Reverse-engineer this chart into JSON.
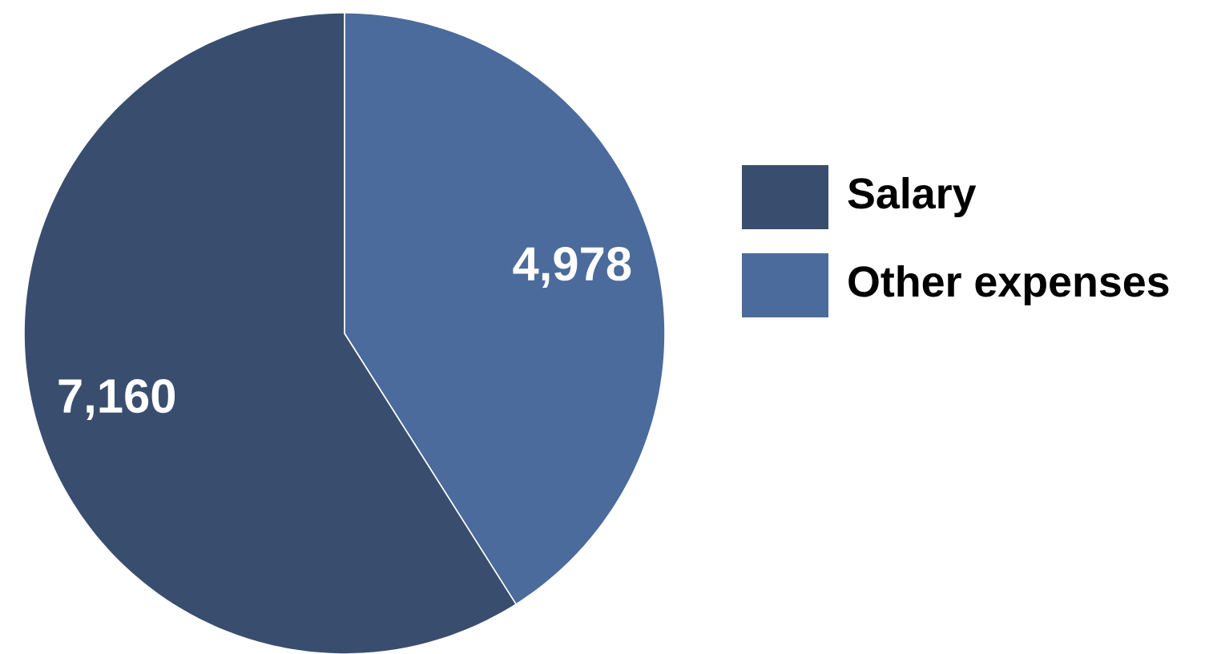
{
  "chart_data": {
    "type": "pie",
    "categories": [
      "Salary",
      "Other expenses"
    ],
    "values": [
      7160,
      4978
    ],
    "value_labels": [
      "7,160",
      "4,978"
    ],
    "colors": [
      "#394e6f",
      "#4a6b9b"
    ],
    "legend": "right"
  }
}
